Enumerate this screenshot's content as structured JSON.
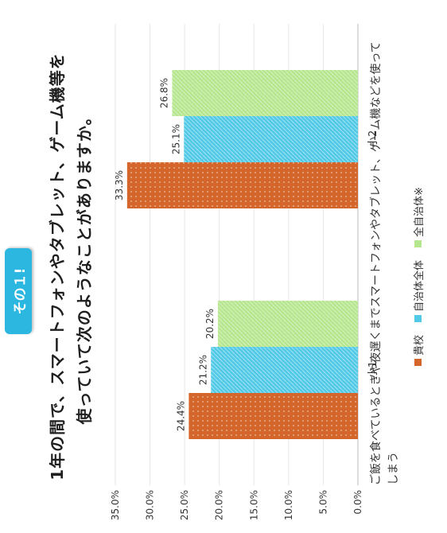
{
  "badge": "その１!",
  "title": {
    "line1": "1年の間で、スマートフォンやタブレット、ゲーム機等を",
    "line2": "使っていて次のようなことがありますか。"
  },
  "note": "ご飯を食べているときや夜遅くまでスマートフォンやタブレット、ゲーム機などを使ってしまう",
  "chart_data": {
    "type": "bar",
    "categories": [
      "小1",
      "小2"
    ],
    "ylim": [
      0,
      35
    ],
    "yticks": [
      "0.0%",
      "5.0%",
      "10.0%",
      "15.0%",
      "20.0%",
      "25.0%",
      "30.0%",
      "35.0%"
    ],
    "ytick_values": [
      0,
      5,
      10,
      15,
      20,
      25,
      30,
      35
    ],
    "series": [
      {
        "name": "貴校",
        "values": [
          24.4,
          33.3
        ],
        "labels": [
          "24.4%",
          "33.3%"
        ],
        "color": "#d4662c"
      },
      {
        "name": "自治体全体",
        "values": [
          21.2,
          25.1
        ],
        "labels": [
          "21.2%",
          "25.1%"
        ],
        "color": "#52c9e6"
      },
      {
        "name": "全自治体※",
        "values": [
          20.2,
          26.8
        ],
        "labels": [
          "20.2%",
          "26.8%"
        ],
        "color": "#b6e68e"
      }
    ]
  }
}
